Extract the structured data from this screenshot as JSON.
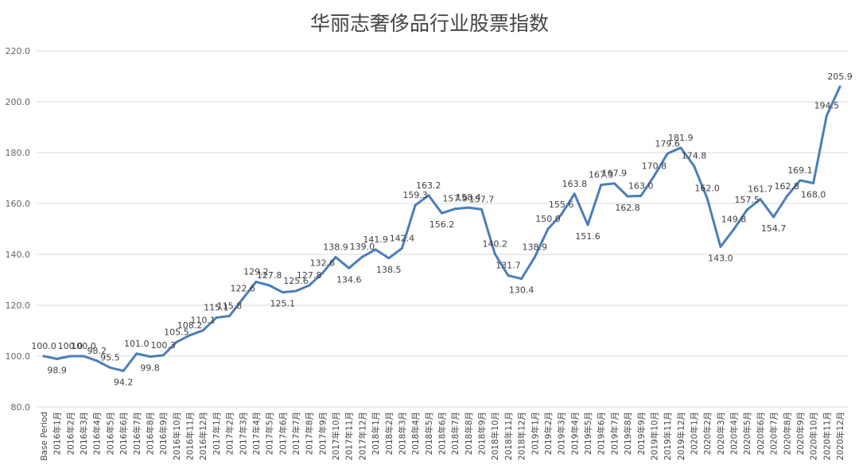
{
  "chart_data": {
    "type": "line",
    "title": "华丽志奢侈品行业股票指数",
    "xlabel": "",
    "ylabel": "",
    "ylim": [
      80,
      220
    ],
    "yticks": [
      "80.0",
      "100.0",
      "120.0",
      "140.0",
      "160.0",
      "180.0",
      "200.0",
      "220.0"
    ],
    "grid": true,
    "legend": "none",
    "line_color": "#4a7ebb",
    "categories": [
      "Base Period",
      "2016年1月",
      "2016年2月",
      "2016年3月",
      "2016年4月",
      "2016年5月",
      "2016年6月",
      "2016年7月",
      "2016年8月",
      "2016年9月",
      "2016年10月",
      "2016年11月",
      "2016年12月",
      "2017年1月",
      "2017年2月",
      "2017年3月",
      "2017年4月",
      "2017年5月",
      "2017年6月",
      "2017年7月",
      "2017年8月",
      "2017年9月",
      "2017年10月",
      "2017年11月",
      "2017年12月",
      "2018年1月",
      "2018年2月",
      "2018年3月",
      "2018年4月",
      "2018年5月",
      "2018年6月",
      "2018年7月",
      "2018年8月",
      "2018年9月",
      "2018年10月",
      "2018年11月",
      "2018年12月",
      "2019年1月",
      "2019年2月",
      "2019年3月",
      "2019年4月",
      "2019年5月",
      "2019年6月",
      "2019年7月",
      "2019年8月",
      "2019年9月",
      "2019年10月",
      "2019年11月",
      "2019年12月",
      "2020年1月",
      "2020年2月",
      "2020年3月",
      "2020年4月",
      "2020年5月",
      "2020年6月",
      "2020年7月",
      "2020年8月",
      "2020年9月",
      "2020年10月",
      "2020年11月",
      "2020年12月"
    ],
    "values": [
      100.0,
      98.9,
      100.0,
      100.0,
      98.2,
      95.5,
      94.2,
      101.0,
      99.8,
      100.3,
      105.5,
      108.2,
      110.1,
      115.1,
      115.8,
      122.6,
      129.2,
      127.8,
      125.1,
      125.6,
      127.8,
      132.6,
      138.9,
      134.6,
      139.0,
      141.9,
      138.5,
      142.4,
      159.3,
      163.2,
      156.2,
      157.9,
      158.4,
      157.7,
      140.2,
      131.7,
      130.4,
      138.9,
      150.0,
      155.6,
      163.8,
      151.6,
      167.3,
      167.9,
      162.8,
      163.0,
      170.8,
      179.6,
      181.9,
      174.8,
      162.0,
      143.0,
      149.8,
      157.5,
      161.7,
      154.7,
      162.8,
      169.1,
      168.0,
      194.5,
      205.9
    ],
    "value_labels": [
      "100.0",
      "98.9",
      "100.0",
      "100.0",
      "98.2",
      "95.5",
      "94.2",
      "101.0",
      "99.8",
      "100.3",
      "105.5",
      "108.2",
      "110.1",
      "115.1",
      "115.8",
      "122.6",
      "129.2",
      "127.8",
      "125.1",
      "125.6",
      "127.8",
      "132.6",
      "138.9",
      "134.6",
      "139.0",
      "141.9",
      "138.5",
      "142.4",
      "159.3",
      "163.2",
      "156.2",
      "157.9",
      "158.4",
      "157.7",
      "140.2",
      "131.7",
      "130.4",
      "138.9",
      "150.0",
      "155.6",
      "163.8",
      "151.6",
      "167.3",
      "167.9",
      "162.8",
      "163.0",
      "170.8",
      "179.6",
      "181.9",
      "174.8",
      "162.0",
      "143.0",
      "149.8",
      "157.5",
      "161.7",
      "154.7",
      "162.8",
      "169.1",
      "168.0",
      "194.5",
      "205.9"
    ]
  }
}
